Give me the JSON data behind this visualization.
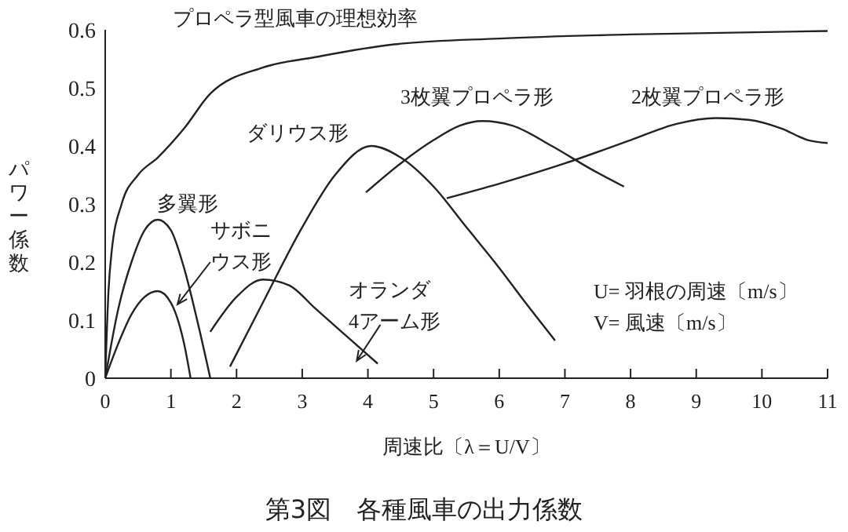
{
  "chart_data": {
    "type": "line",
    "title": "第3図　各種風車の出力係数",
    "xlabel": "周速比〔λ＝U/V〕",
    "ylabel": "パワー係数",
    "xlim": [
      0,
      11
    ],
    "xticks": [
      0,
      1,
      2,
      3,
      4,
      5,
      6,
      7,
      8,
      9,
      10,
      11
    ],
    "ylim": [
      0,
      0.6
    ],
    "yticks": [
      0,
      0.1,
      0.2,
      0.3,
      0.4,
      0.5,
      0.6
    ],
    "grid": false,
    "legend": false,
    "marker": "none",
    "line_style": "solid",
    "annotations": [
      "U= 羽根の周速〔m/s〕",
      "V= 風速〔m/s〕"
    ],
    "series": [
      {
        "name": "プロペラ型風車の理想効率",
        "color": "#222222",
        "x": [
          0,
          0.05,
          0.1,
          0.25,
          0.5,
          0.8,
          1.2,
          1.6,
          2.4,
          3.2,
          4.4,
          6,
          8,
          11
        ],
        "values": [
          0,
          0.15,
          0.22,
          0.3,
          0.35,
          0.38,
          0.43,
          0.49,
          0.535,
          0.553,
          0.575,
          0.585,
          0.592,
          0.598
        ]
      },
      {
        "name": "多翼形",
        "color": "#222222",
        "x": [
          0,
          0.2,
          0.4,
          0.6,
          0.8,
          1.0,
          1.2,
          1.4,
          1.6
        ],
        "values": [
          0,
          0.12,
          0.2,
          0.255,
          0.273,
          0.255,
          0.19,
          0.1,
          0
        ]
      },
      {
        "name": "サボニウス形",
        "color": "#222222",
        "x": [
          0,
          0.2,
          0.4,
          0.6,
          0.8,
          1.0,
          1.2,
          1.3
        ],
        "values": [
          0,
          0.06,
          0.11,
          0.14,
          0.15,
          0.13,
          0.06,
          0
        ]
      },
      {
        "name": "オランダ4アーム形",
        "color": "#222222",
        "x": [
          1.6,
          2.0,
          2.4,
          2.8,
          3.2,
          3.6,
          4.15
        ],
        "values": [
          0.08,
          0.14,
          0.17,
          0.16,
          0.12,
          0.08,
          0.025
        ]
      },
      {
        "name": "ダリウス形",
        "color": "#222222",
        "x": [
          1.9,
          2.4,
          3,
          3.5,
          4.05,
          4.5,
          5,
          5.5,
          6,
          6.4,
          6.85
        ],
        "values": [
          0.02,
          0.13,
          0.26,
          0.35,
          0.4,
          0.38,
          0.33,
          0.26,
          0.19,
          0.13,
          0.065
        ]
      },
      {
        "name": "3枚翼プロペラ形",
        "color": "#222222",
        "x": [
          3.97,
          4.5,
          5,
          5.4,
          5.74,
          6.2,
          6.8,
          7.4,
          7.9
        ],
        "values": [
          0.32,
          0.37,
          0.41,
          0.435,
          0.443,
          0.435,
          0.4,
          0.36,
          0.33
        ]
      },
      {
        "name": "2枚翼プロペラ形",
        "color": "#222222",
        "x": [
          5.2,
          6,
          7,
          8,
          8.7,
          9.3,
          9.8,
          10.3,
          10.7,
          11
        ],
        "values": [
          0.31,
          0.335,
          0.37,
          0.41,
          0.438,
          0.448,
          0.445,
          0.43,
          0.41,
          0.405
        ]
      }
    ]
  }
}
